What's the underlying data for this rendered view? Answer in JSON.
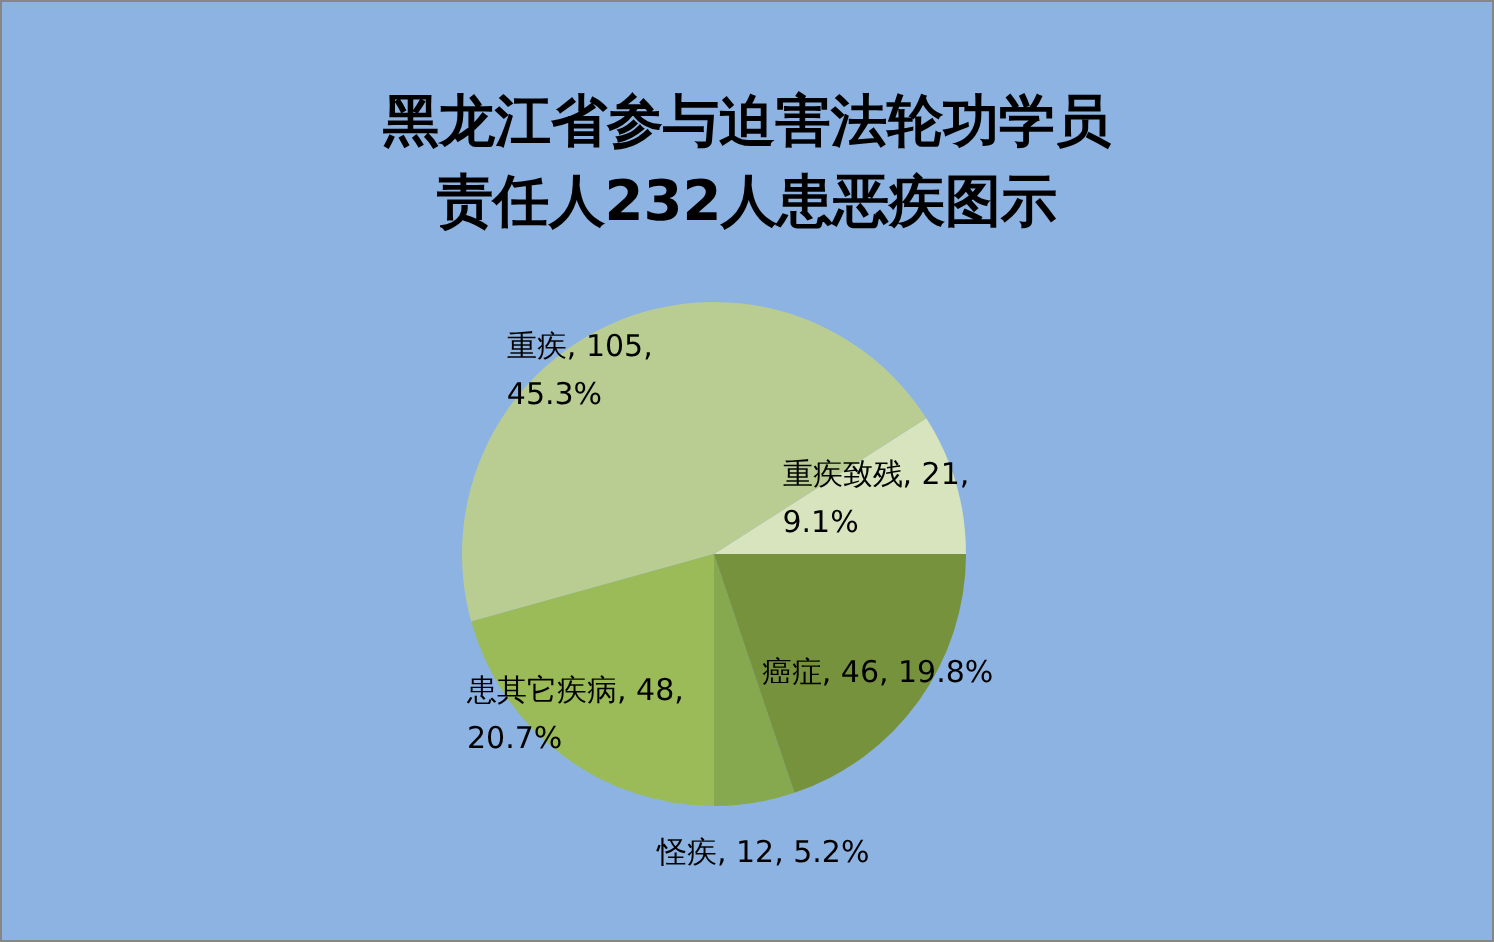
{
  "chart_data": {
    "type": "pie",
    "title": "黑龙江省参与迫害法轮功学员责任人232人患恶疾图示",
    "categories": [
      "重疾致残",
      "重疾",
      "患其它疾病",
      "怪疾",
      "癌症"
    ],
    "values": [
      21,
      105,
      48,
      12,
      46
    ],
    "value_labels": [
      "21, 9.1%",
      "105, 45.3%",
      "48, 20.7%",
      "12, 5.2%",
      "46, 19.8%"
    ],
    "colors": [
      "#d7e4bd",
      "#b9cd93",
      "#9bbb59",
      "#86a84f",
      "#76923c"
    ],
    "legend": false
  }
}
